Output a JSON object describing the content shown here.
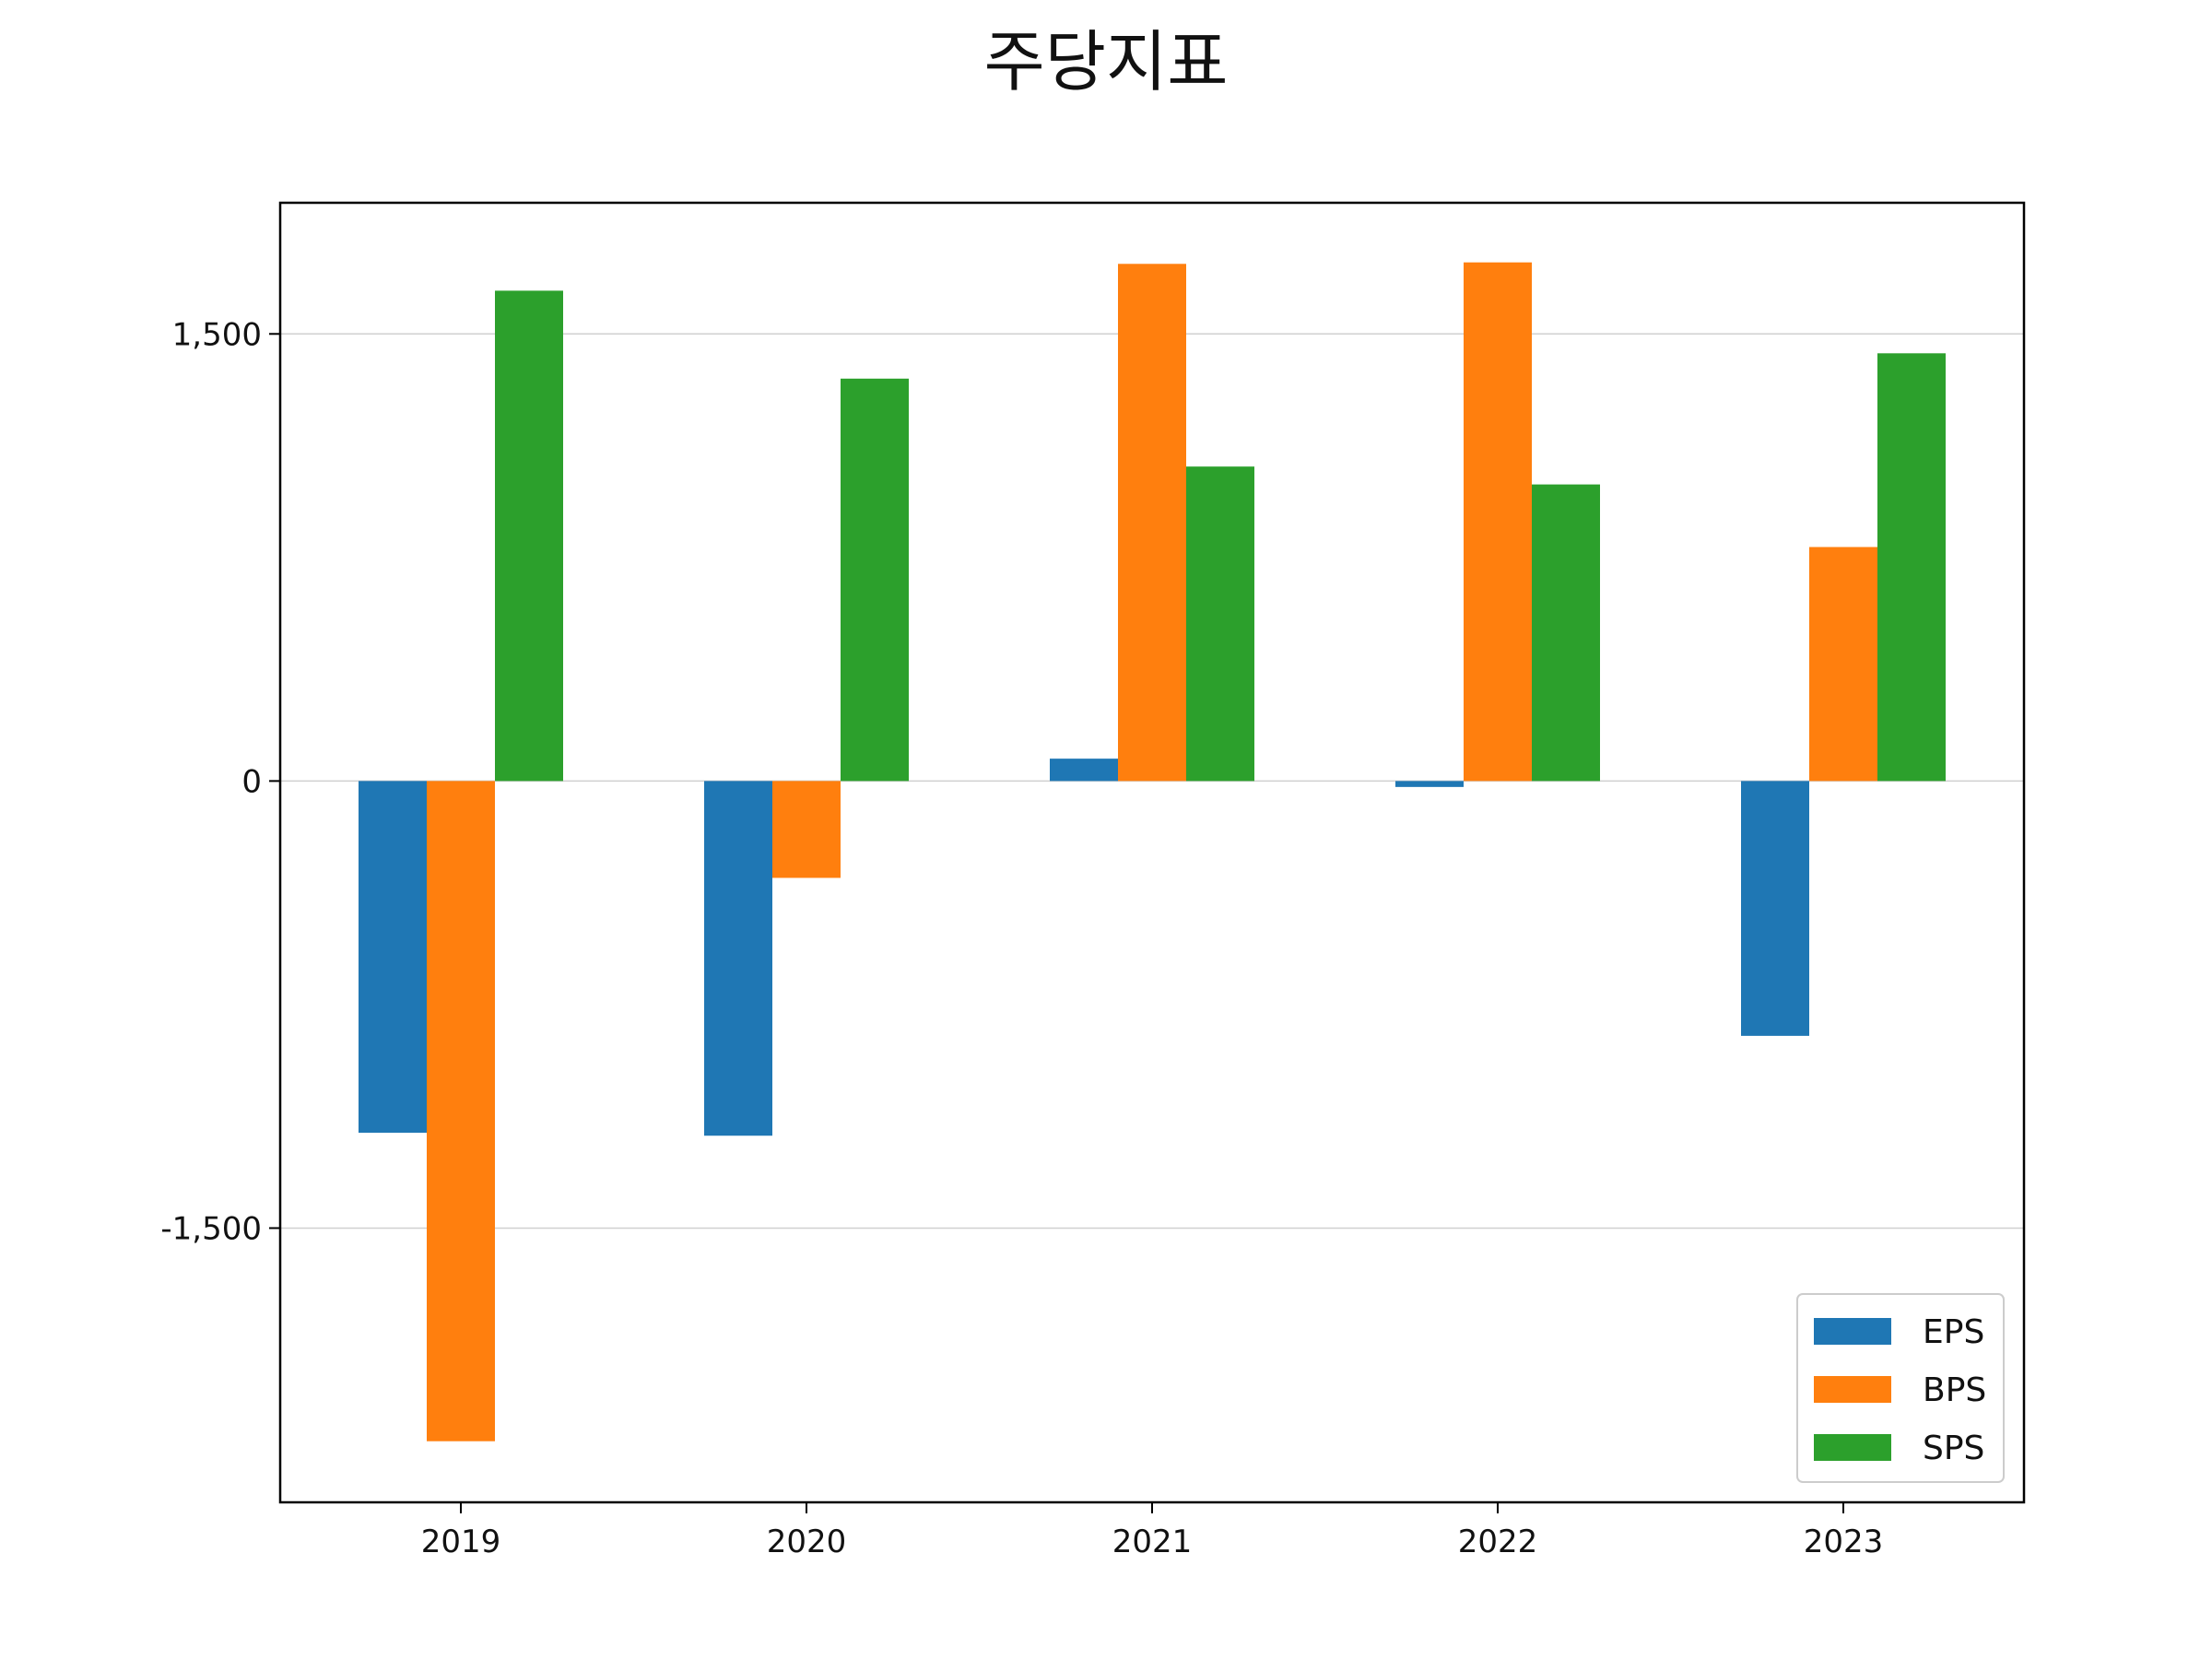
{
  "chart_data": {
    "type": "bar",
    "title": "주당지표",
    "xlabel": "",
    "ylabel": "",
    "categories": [
      "2019",
      "2020",
      "2021",
      "2022",
      "2023"
    ],
    "series": [
      {
        "name": "EPS",
        "color": "#1f77b4",
        "values": [
          -1180,
          -1190,
          75,
          -20,
          -855
        ]
      },
      {
        "name": "BPS",
        "color": "#ff7f0e",
        "values": [
          -2215,
          -325,
          1735,
          1740,
          785
        ]
      },
      {
        "name": "SPS",
        "color": "#2ca02c",
        "values": [
          1645,
          1350,
          1055,
          995,
          1435
        ]
      }
    ],
    "ylim": [
      -2420,
      1940
    ],
    "yticks": [
      {
        "value": -1500,
        "label": "-1,500"
      },
      {
        "value": 0,
        "label": "0"
      },
      {
        "value": 1500,
        "label": "1,500"
      }
    ],
    "grid": true,
    "legend_position": "lower-right"
  }
}
